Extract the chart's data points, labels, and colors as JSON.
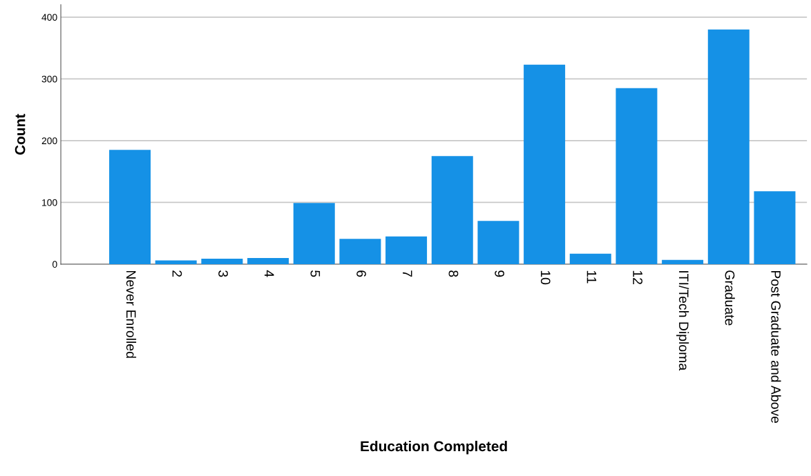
{
  "chart_data": {
    "type": "bar",
    "xlabel": "Education Completed",
    "ylabel": "Count",
    "categories": [
      "Never Enrolled",
      "2",
      "3",
      "4",
      "5",
      "6",
      "7",
      "8",
      "9",
      "10",
      "11",
      "12",
      "ITI/Tech Diploma",
      "Graduate",
      "Post Graduate and Above"
    ],
    "values": [
      185,
      6,
      9,
      10,
      99,
      41,
      45,
      175,
      70,
      323,
      17,
      285,
      7,
      380,
      118
    ],
    "color": "#1591e6",
    "ylim": [
      0,
      420
    ],
    "yticks": [
      0,
      100,
      200,
      300,
      400
    ],
    "grid": "y"
  }
}
